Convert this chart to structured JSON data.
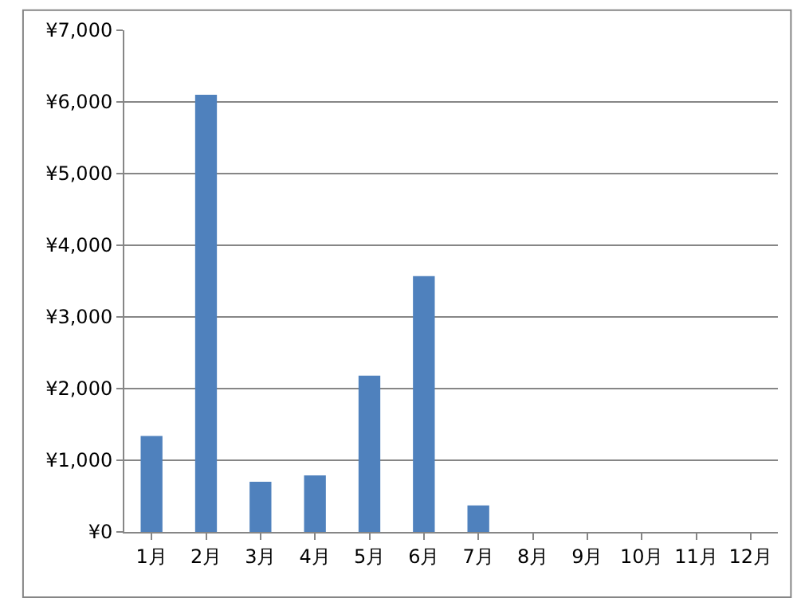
{
  "chart_data": {
    "type": "bar",
    "categories": [
      "1月",
      "2月",
      "3月",
      "4月",
      "5月",
      "6月",
      "7月",
      "8月",
      "9月",
      "10月",
      "11月",
      "12月"
    ],
    "values": [
      1340,
      6100,
      700,
      790,
      2180,
      3570,
      370,
      0,
      0,
      0,
      0,
      0
    ],
    "color": "#4f81bd",
    "ylim": [
      0,
      7000
    ],
    "yticks": [
      {
        "value": 0,
        "label": "¥0"
      },
      {
        "value": 1000,
        "label": "¥1,000"
      },
      {
        "value": 2000,
        "label": "¥2,000"
      },
      {
        "value": 3000,
        "label": "¥3,000"
      },
      {
        "value": 4000,
        "label": "¥4,000"
      },
      {
        "value": 5000,
        "label": "¥5,000"
      },
      {
        "value": 6000,
        "label": "¥6,000"
      },
      {
        "value": 7000,
        "label": "¥7,000"
      }
    ],
    "grid": "y",
    "legend": false
  }
}
